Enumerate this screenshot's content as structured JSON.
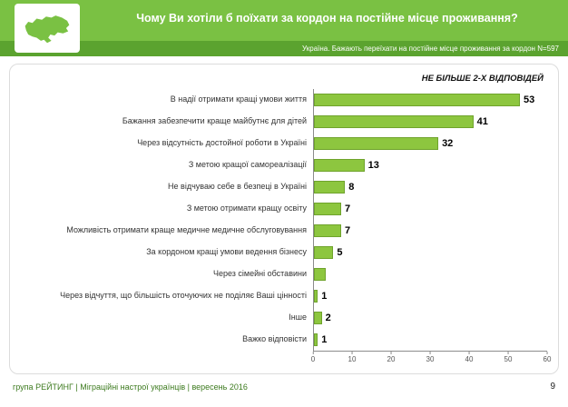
{
  "header": {
    "title": "Чому Ви хотіли б поїхати за кордон на постійне місце проживання?",
    "subtitle": "Україна. Бажають переїхати на постійне місце проживання за кордон N=597"
  },
  "colors": {
    "header_green": "#7AC143",
    "subtitle_band_green": "#5BA32F",
    "bar_green": "#8DC63F",
    "bar_border_green": "#6FA32C",
    "footer_text_green": "#3C7A1E"
  },
  "chart_data": {
    "type": "bar",
    "orientation": "horizontal",
    "title": "Чому Ви хотіли б поїхати за кордон на постійне місце проживання?",
    "note": "НЕ БІЛЬШЕ 2-Х ВІДПОВІДЕЙ",
    "categories": [
      "В надії отримати кращі умови життя",
      "Бажання забезпечити краще майбутнє для дітей",
      "Через відсутність достойної роботи в Україні",
      "З метою кращої самореалізації",
      "Не відчуваю себе в безпеці в Україні",
      "З метою отримати кращу освіту",
      "Можливість отримати краще медичне медичне обслуговування",
      "За кордоном кращі умови ведення бізнесу",
      "Через сімейні обставини",
      "Через відчуття, що більшість оточуючих не поділяє Ваші цінності",
      "Інше",
      "Важко відповісти"
    ],
    "values": [
      53,
      41,
      32,
      13,
      8,
      7,
      7,
      5,
      3,
      1,
      2,
      1
    ],
    "value_labels": [
      "53",
      "41",
      "32",
      "13",
      "8",
      "7",
      "7",
      "5",
      "",
      "1",
      "2",
      "1"
    ],
    "xlim": [
      0,
      60
    ],
    "xticks": [
      0,
      10,
      20,
      30,
      40,
      50,
      60
    ],
    "grid": false,
    "legend": false
  },
  "footer": {
    "text": "група РЕЙТИНГ  |  Міграційні настрої українців  |  вересень 2016",
    "page_number": "9"
  }
}
